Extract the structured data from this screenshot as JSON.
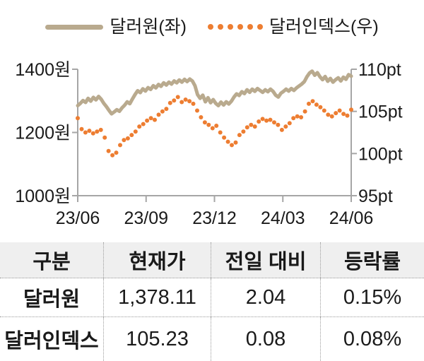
{
  "legend": {
    "items": [
      {
        "label": "달러원(좌)",
        "marker": "line"
      },
      {
        "label": "달러인덱스(우)",
        "marker": "dots"
      }
    ]
  },
  "chart_data": {
    "type": "line",
    "title": "",
    "x_tick_labels": [
      "23/06",
      "23/09",
      "23/12",
      "24/03",
      "24/06"
    ],
    "left_axis": {
      "unit": "원",
      "min": 1000,
      "max": 1400,
      "tick_values": [
        1400,
        1200,
        1000
      ],
      "tick_labels": [
        "1400원",
        "1200원",
        "1000원"
      ]
    },
    "right_axis": {
      "unit": "pt",
      "min": 95,
      "max": 110,
      "tick_values": [
        110,
        105,
        100,
        95
      ],
      "tick_labels": [
        "110pt",
        "105pt",
        "100pt",
        "95pt"
      ]
    },
    "series": [
      {
        "name": "달러원(좌)",
        "axis": "left",
        "style": "line",
        "values": [
          1285,
          1292,
          1301,
          1295,
          1308,
          1299,
          1311,
          1303,
          1314,
          1305,
          1292,
          1282,
          1270,
          1259,
          1265,
          1272,
          1267,
          1278,
          1286,
          1297,
          1291,
          1306,
          1320,
          1332,
          1326,
          1338,
          1331,
          1342,
          1336,
          1348,
          1341,
          1352,
          1346,
          1357,
          1350,
          1359,
          1353,
          1363,
          1357,
          1366,
          1359,
          1368,
          1361,
          1369,
          1363,
          1348,
          1320,
          1308,
          1318,
          1297,
          1310,
          1294,
          1304,
          1292,
          1285,
          1296,
          1287,
          1297,
          1290,
          1299,
          1312,
          1322,
          1317,
          1329,
          1323,
          1335,
          1327,
          1337,
          1330,
          1339,
          1333,
          1327,
          1335,
          1329,
          1337,
          1330,
          1318,
          1312,
          1324,
          1330,
          1337,
          1331,
          1339,
          1333,
          1341,
          1347,
          1353,
          1361,
          1376,
          1388,
          1394,
          1381,
          1389,
          1376,
          1367,
          1377,
          1362,
          1371,
          1359,
          1367,
          1373,
          1363,
          1375,
          1368,
          1383,
          1378
        ]
      },
      {
        "name": "달러인덱스(우)",
        "axis": "right",
        "style": "dots",
        "values": [
          104.2,
          102.9,
          102.5,
          102.7,
          102.4,
          102.6,
          102.8,
          101.9,
          100.3,
          99.8,
          100.1,
          101.0,
          101.6,
          101.8,
          102.2,
          102.6,
          103.2,
          103.5,
          103.9,
          104.2,
          104.0,
          104.6,
          105.0,
          105.3,
          106.0,
          106.3,
          106.7,
          106.1,
          106.4,
          106.2,
          105.9,
          105.1,
          104.3,
          103.7,
          103.4,
          103.0,
          103.3,
          102.5,
          101.9,
          101.4,
          101.0,
          101.3,
          102.2,
          102.6,
          103.1,
          103.4,
          103.2,
          103.8,
          104.1,
          103.9,
          104.0,
          103.7,
          103.4,
          102.8,
          103.2,
          103.6,
          104.2,
          104.4,
          104.3,
          105.0,
          105.9,
          106.2,
          105.8,
          105.5,
          105.1,
          104.6,
          104.4,
          104.8,
          105.1,
          104.7,
          104.5,
          105.2
        ]
      }
    ]
  },
  "table": {
    "headers": [
      "구분",
      "현재가",
      "전일 대비",
      "등락률"
    ],
    "rows": [
      {
        "label": "달러원",
        "cells": [
          "1,378.11",
          "2.04",
          "0.15%"
        ]
      },
      {
        "label": "달러인덱스",
        "cells": [
          "105.23",
          "0.08",
          "0.08%"
        ]
      }
    ]
  },
  "colors": {
    "usd_krw": "#b9aa8e",
    "dollar_index": "#ed7d31",
    "axis": "#a6a6a6",
    "text": "#1a1a1a",
    "table_header_bg": "#efefef",
    "table_border": "#9a9a9a"
  }
}
